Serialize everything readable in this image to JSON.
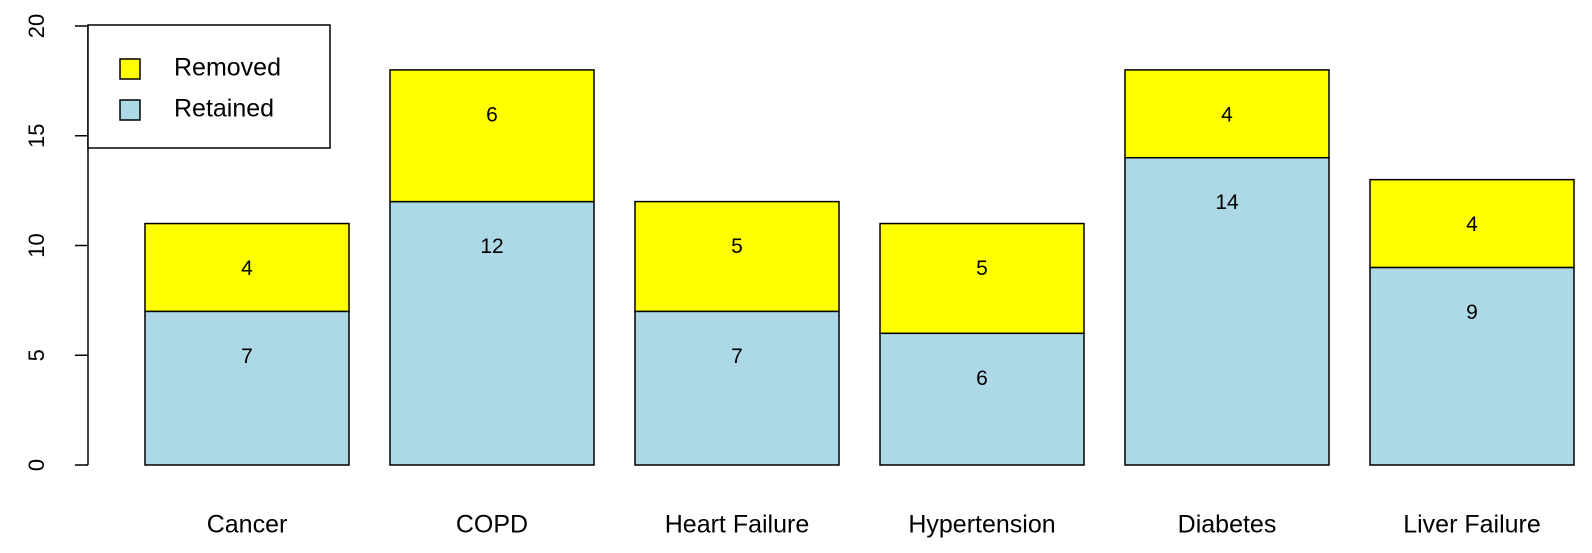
{
  "chart_data": {
    "type": "stacked_bar",
    "categories": [
      "Cancer",
      "COPD",
      "Heart Failure",
      "Hypertension",
      "Diabetes",
      "Liver Failure"
    ],
    "series": [
      {
        "name": "Retained",
        "color": "#add8e6",
        "values": [
          7,
          12,
          7,
          6,
          14,
          9
        ]
      },
      {
        "name": "Removed",
        "color": "#ffff00",
        "values": [
          4,
          6,
          5,
          5,
          4,
          4
        ]
      }
    ],
    "ylim": [
      0,
      20
    ],
    "yticks": [
      0,
      5,
      10,
      15,
      20
    ],
    "legend": "top-left"
  }
}
